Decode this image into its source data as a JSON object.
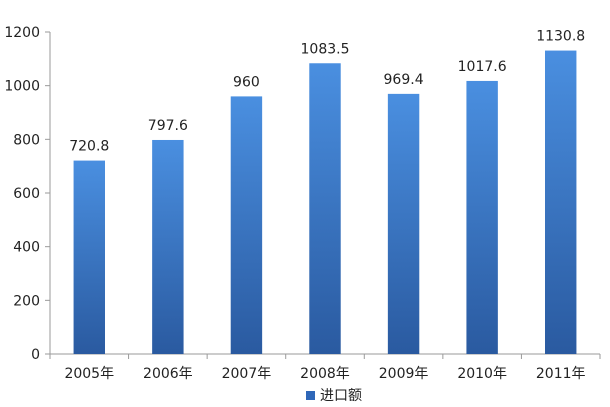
{
  "chart_data": {
    "type": "bar",
    "categories": [
      "2005年",
      "2006年",
      "2007年",
      "2008年",
      "2009年",
      "2010年",
      "2011年"
    ],
    "series": [
      {
        "name": "进口额",
        "values": [
          720.8,
          797.6,
          960,
          1083.5,
          969.4,
          1017.6,
          1130.8
        ],
        "data_labels": [
          "720.8",
          "797.6",
          "960",
          "1083.5",
          "969.4",
          "1017.6",
          "1130.8"
        ]
      }
    ],
    "ylim": [
      0,
      1200
    ],
    "yticks": [
      0,
      200,
      400,
      600,
      800,
      1000,
      1200
    ],
    "grid": false,
    "legend_position": "bottom-center",
    "title": "",
    "xlabel": "",
    "ylabel": "",
    "colors": {
      "bar_light": "#4a8fe0",
      "bar_dark": "#2a5aa0",
      "legend_marker": "#2f67b8"
    }
  }
}
